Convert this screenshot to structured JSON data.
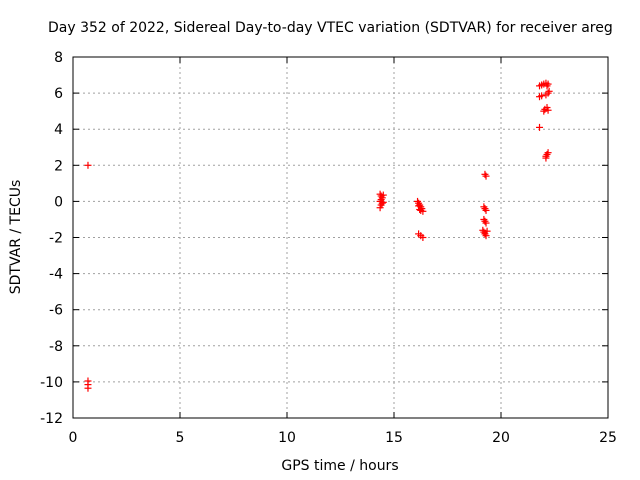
{
  "chart_data": {
    "type": "scatter",
    "title": "Day 352 of 2022, Sidereal Day-to-day VTEC variation (SDTVAR) for receiver areg",
    "xlabel": "GPS time / hours",
    "ylabel": "SDTVAR / TECUs",
    "xlim": [
      0,
      25
    ],
    "ylim": [
      -12,
      8
    ],
    "xticks": [
      0,
      5,
      10,
      15,
      20,
      25
    ],
    "yticks": [
      -12,
      -10,
      -8,
      -6,
      -4,
      -2,
      0,
      2,
      4,
      6,
      8
    ],
    "xtick_labels": [
      "0",
      "5",
      "10",
      "15",
      "20",
      "25"
    ],
    "ytick_labels": [
      "-12",
      "-10",
      "-8",
      "-6",
      "-4",
      "-2",
      "0",
      "2",
      "4",
      "6",
      "8"
    ],
    "grid": true,
    "marker": "+",
    "color": "#ff0000",
    "series": [
      {
        "name": "SDTVAR",
        "points": [
          [
            0.7,
            2.0
          ],
          [
            0.7,
            -9.95
          ],
          [
            0.7,
            -10.15
          ],
          [
            0.7,
            -10.35
          ],
          [
            14.35,
            0.4
          ],
          [
            14.4,
            0.3
          ],
          [
            14.45,
            0.2
          ],
          [
            14.4,
            0.1
          ],
          [
            14.35,
            0.0
          ],
          [
            14.45,
            -0.1
          ],
          [
            14.4,
            -0.2
          ],
          [
            14.35,
            -0.35
          ],
          [
            14.5,
            0.35
          ],
          [
            14.5,
            -0.05
          ],
          [
            16.1,
            0.0
          ],
          [
            16.15,
            -0.1
          ],
          [
            16.2,
            -0.2
          ],
          [
            16.25,
            -0.3
          ],
          [
            16.3,
            -0.4
          ],
          [
            16.25,
            -0.5
          ],
          [
            16.35,
            -0.55
          ],
          [
            16.2,
            -0.45
          ],
          [
            16.15,
            -0.25
          ],
          [
            16.15,
            -1.8
          ],
          [
            16.25,
            -1.9
          ],
          [
            16.35,
            -2.0
          ],
          [
            19.25,
            1.5
          ],
          [
            19.3,
            1.4
          ],
          [
            19.2,
            -0.3
          ],
          [
            19.25,
            -0.4
          ],
          [
            19.3,
            -0.5
          ],
          [
            19.2,
            -1.0
          ],
          [
            19.25,
            -1.1
          ],
          [
            19.3,
            -1.2
          ],
          [
            19.15,
            -1.6
          ],
          [
            19.2,
            -1.7
          ],
          [
            19.25,
            -1.8
          ],
          [
            19.3,
            -1.9
          ],
          [
            19.35,
            -1.65
          ],
          [
            21.8,
            6.4
          ],
          [
            21.9,
            6.45
          ],
          [
            22.0,
            6.5
          ],
          [
            22.1,
            6.55
          ],
          [
            22.2,
            6.5
          ],
          [
            22.15,
            6.4
          ],
          [
            21.8,
            5.8
          ],
          [
            21.9,
            5.85
          ],
          [
            22.1,
            5.9
          ],
          [
            22.2,
            6.0
          ],
          [
            22.25,
            6.1
          ],
          [
            22.0,
            5.0
          ],
          [
            22.05,
            5.1
          ],
          [
            22.15,
            5.2
          ],
          [
            22.2,
            5.05
          ],
          [
            21.8,
            4.1
          ],
          [
            22.1,
            2.5
          ],
          [
            22.15,
            2.6
          ],
          [
            22.2,
            2.7
          ],
          [
            22.1,
            2.4
          ]
        ]
      }
    ]
  }
}
